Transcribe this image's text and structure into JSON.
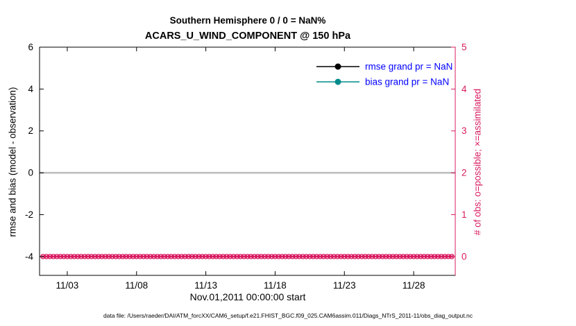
{
  "chart_data": {
    "type": "line",
    "title": "Southern Hemisphere 0 / 0 = NaN%",
    "subtitle": "ACARS_U_WIND_COMPONENT @ 150 hPa",
    "xlabel": "Nov.01,2011 00:00:00 start",
    "ylabel_left": "rmse and bias (model - observation)",
    "ylabel_right": "# of obs: o=possible; ×=assimilated",
    "x_tick_labels": [
      "11/03",
      "11/08",
      "11/13",
      "11/18",
      "11/23",
      "11/28"
    ],
    "x_tick_days": [
      3,
      8,
      13,
      18,
      23,
      28
    ],
    "x_range_days": [
      1,
      31
    ],
    "y_left_ticks": [
      -4,
      -2,
      0,
      2,
      4,
      6
    ],
    "y_left_range": [
      -4.9,
      6
    ],
    "y_right_ticks": [
      0,
      1,
      2,
      3,
      4,
      5
    ],
    "y_right_range": [
      -0.45,
      5
    ],
    "grid": false,
    "colors": {
      "axis_left": "#000000",
      "axis_right": "#d81b60",
      "obs_count": "#d81b60",
      "zero_line": "#bbbbbb",
      "rmse": "#000000",
      "bias": "#008b8b",
      "legend_text": "#0000ff"
    },
    "series": [
      {
        "name": "rmse",
        "legend_label": "rmse grand pr = NaN",
        "axis": "left",
        "values": "NaN (nothing plotted)"
      },
      {
        "name": "bias",
        "legend_label": "bias grand pr = NaN",
        "axis": "left",
        "values": "NaN (nothing plotted)"
      },
      {
        "name": "zero-reference",
        "axis": "left",
        "y_constant": 0
      },
      {
        "name": "obs-possible-o",
        "axis": "right",
        "x_start_day": 1.25,
        "x_end_day": 30.75,
        "x_step_days": 0.25,
        "y_constant": 0
      },
      {
        "name": "obs-assimilated-x",
        "axis": "right",
        "x_start_day": 1.25,
        "x_end_day": 30.75,
        "x_step_days": 0.25,
        "y_constant": 0
      }
    ],
    "legend": {
      "position": "top-right-inside",
      "entries": [
        {
          "label": "rmse grand pr = NaN",
          "line_color": "#000000",
          "marker": "filled-circle"
        },
        {
          "label": "bias grand pr = NaN",
          "line_color": "#008b8b",
          "marker": "filled-circle"
        }
      ]
    }
  },
  "footer": {
    "data_file": "data file: /Users/raeder/DAI/ATM_forcXX/CAM6_setup/f.e21.FHIST_BGC.f09_025.CAM6assim.011/Diags_NTrS_2011-11/obs_diag_output.nc"
  }
}
